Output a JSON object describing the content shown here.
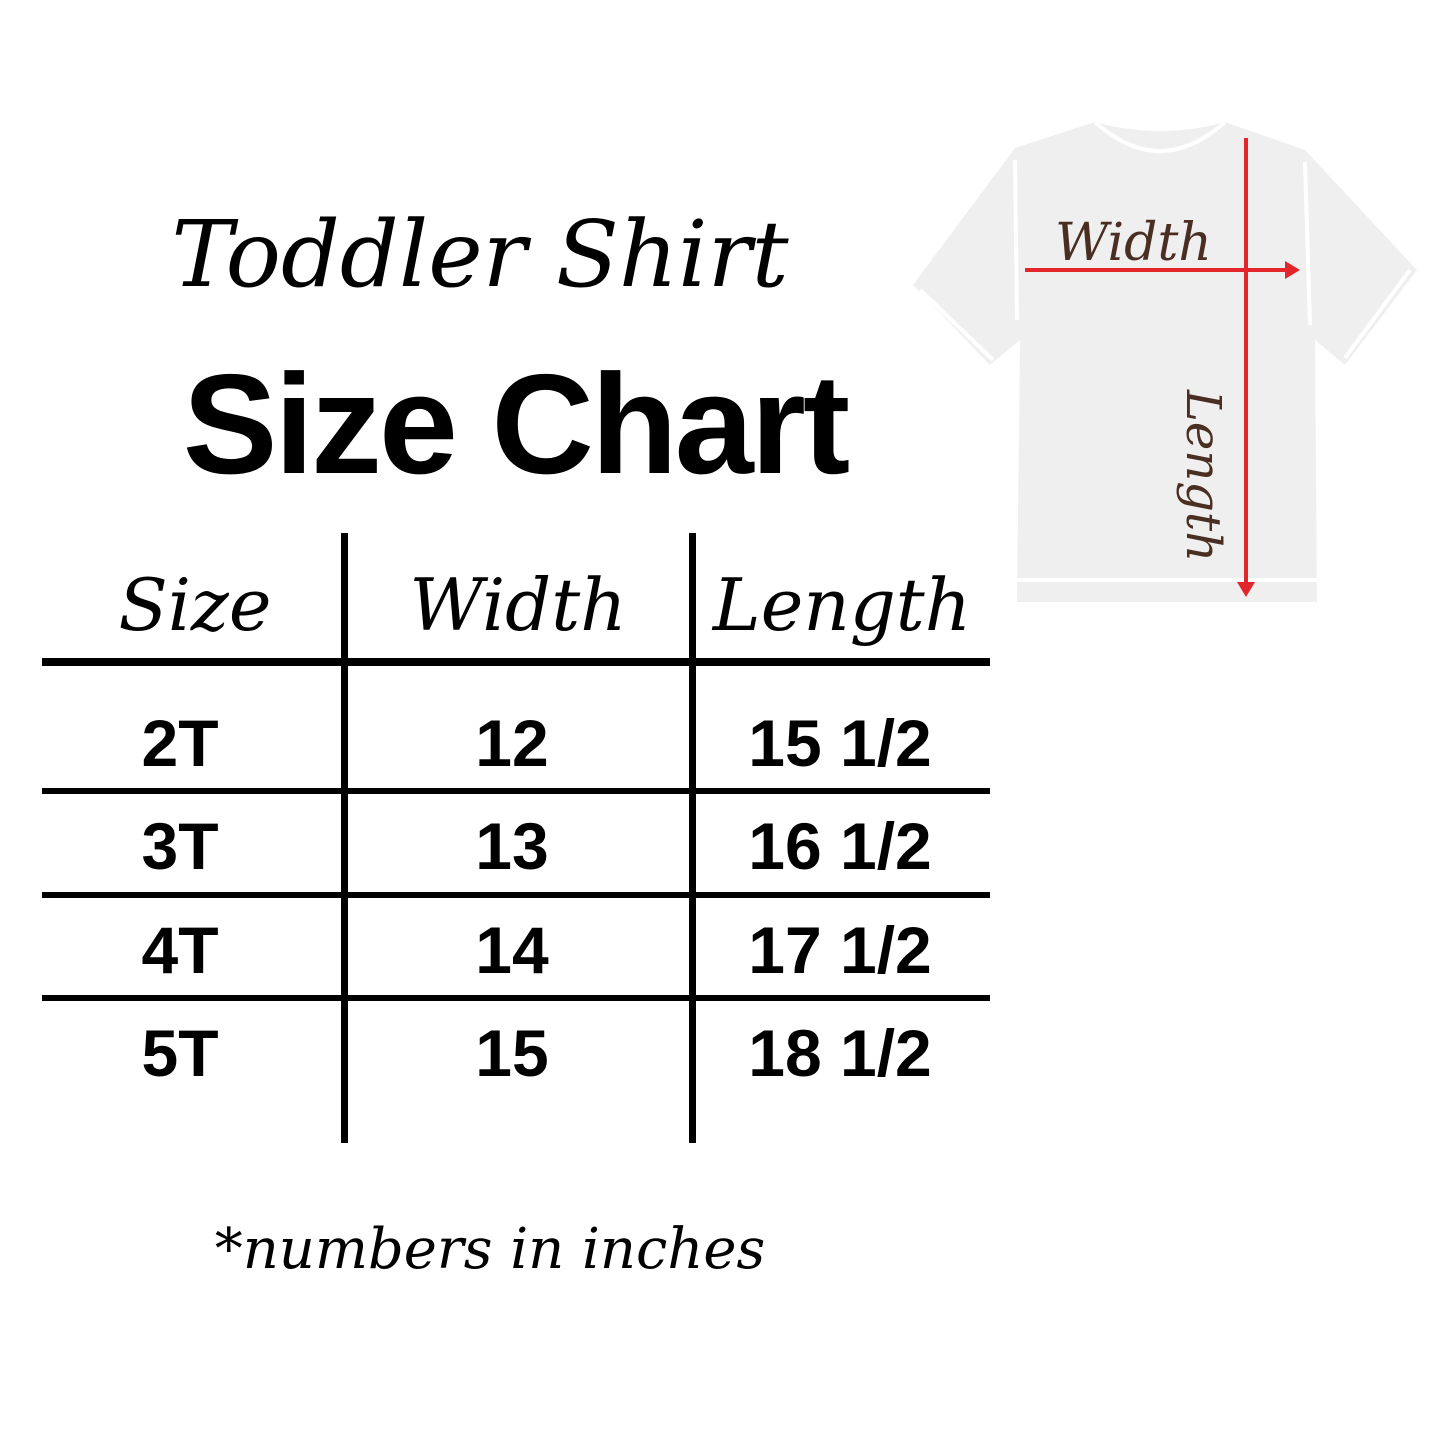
{
  "title": {
    "script": "Toddler Shirt",
    "main": "Size Chart"
  },
  "table": {
    "headers": [
      "Size",
      "Width",
      "Length"
    ],
    "rows": [
      [
        "2T",
        "12",
        "15 1/2"
      ],
      [
        "3T",
        "13",
        "16 1/2"
      ],
      [
        "4T",
        "14",
        "17 1/2"
      ],
      [
        "5T",
        "15",
        "18 1/2"
      ]
    ]
  },
  "footnote": "*numbers in inches",
  "diagram": {
    "width_label": "Width",
    "length_label": "Length",
    "shirt_color": "#efefef",
    "arrow_color": "#e3262b",
    "label_color": "#4a2e22"
  }
}
